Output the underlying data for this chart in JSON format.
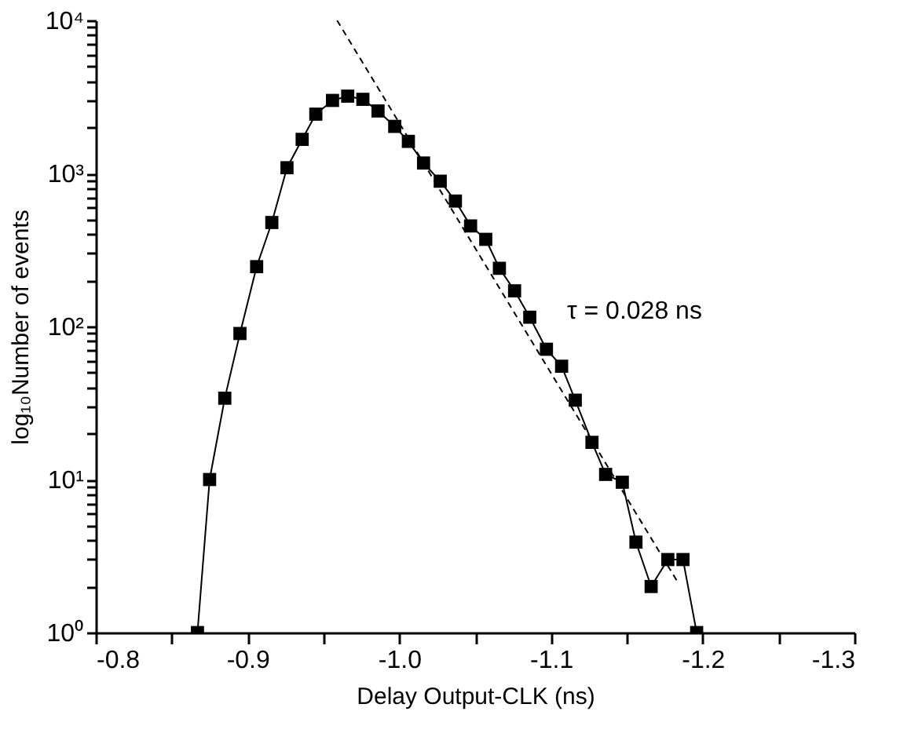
{
  "chart_data": {
    "type": "line",
    "xlabel": "Delay Output-CLK (ns)",
    "ylabel": "log₁₀Number of events",
    "log": "y",
    "grid": false,
    "xlim": [
      -0.8,
      -1.3
    ],
    "xticks": [
      {
        "value": -0.8,
        "label": "-0.8"
      },
      {
        "value": -0.85,
        "label": null
      },
      {
        "value": -0.9,
        "label": "-0.9"
      },
      {
        "value": -0.95,
        "label": null
      },
      {
        "value": -1.0,
        "label": "-1.0"
      },
      {
        "value": -1.05,
        "label": null
      },
      {
        "value": -1.1,
        "label": "-1.1"
      },
      {
        "value": -1.15,
        "label": null
      },
      {
        "value": -1.2,
        "label": "-1.2"
      },
      {
        "value": -1.25,
        "label": null
      },
      {
        "value": -1.3,
        "label": "-1.3"
      }
    ],
    "ylim": [
      1,
      10000
    ],
    "yticks": [
      {
        "value": 1,
        "label": "10⁰"
      },
      {
        "value": 2,
        "label": null
      },
      {
        "value": 3,
        "label": null
      },
      {
        "value": 4,
        "label": null
      },
      {
        "value": 5,
        "label": null
      },
      {
        "value": 6,
        "label": null
      },
      {
        "value": 7,
        "label": null
      },
      {
        "value": 8,
        "label": null
      },
      {
        "value": 9,
        "label": null
      },
      {
        "value": 10,
        "label": "10¹"
      },
      {
        "value": 20,
        "label": null
      },
      {
        "value": 30,
        "label": null
      },
      {
        "value": 40,
        "label": null
      },
      {
        "value": 50,
        "label": null
      },
      {
        "value": 60,
        "label": null
      },
      {
        "value": 70,
        "label": null
      },
      {
        "value": 80,
        "label": null
      },
      {
        "value": 90,
        "label": null
      },
      {
        "value": 100,
        "label": "10²"
      },
      {
        "value": 200,
        "label": null
      },
      {
        "value": 300,
        "label": null
      },
      {
        "value": 400,
        "label": null
      },
      {
        "value": 500,
        "label": null
      },
      {
        "value": 600,
        "label": null
      },
      {
        "value": 700,
        "label": null
      },
      {
        "value": 800,
        "label": null
      },
      {
        "value": 900,
        "label": null
      },
      {
        "value": 1000,
        "label": "10³"
      },
      {
        "value": 2000,
        "label": null
      },
      {
        "value": 3000,
        "label": null
      },
      {
        "value": 4000,
        "label": null
      },
      {
        "value": 5000,
        "label": null
      },
      {
        "value": 6000,
        "label": null
      },
      {
        "value": 7000,
        "label": null
      },
      {
        "value": 8000,
        "label": null
      },
      {
        "value": 9000,
        "label": null
      },
      {
        "value": 10000,
        "label": "10⁴"
      }
    ],
    "annotations": [
      "τ = 0.028 ns"
    ],
    "series": [
      {
        "marker": "square",
        "line_style": "solid",
        "color": "#000000",
        "x": [
          -0.867,
          -0.875,
          -0.885,
          -0.895,
          -0.906,
          -0.916,
          -0.926,
          -0.936,
          -0.945,
          -0.956,
          -0.966,
          -0.976,
          -0.986,
          -0.997,
          -1.006,
          -1.016,
          -1.027,
          -1.037,
          -1.047,
          -1.057,
          -1.066,
          -1.076,
          -1.086,
          -1.097,
          -1.107,
          -1.116,
          -1.127,
          -1.136,
          -1.147,
          -1.156,
          -1.166,
          -1.177,
          -1.187,
          -1.196
        ],
        "values": [
          1,
          10,
          34,
          90,
          246,
          478,
          1090,
          1670,
          2440,
          3000,
          3200,
          3050,
          2560,
          2030,
          1620,
          1170,
          890,
          660,
          454,
          371,
          240,
          171,
          115,
          71,
          55,
          33,
          17.5,
          10.8,
          9.6,
          3.9,
          2,
          3,
          3,
          1
        ]
      },
      {
        "marker": "none",
        "line_style": "dashed",
        "color": "#000000",
        "x": [
          -0.959,
          -1.184
        ],
        "values": [
          10000,
          2.1
        ]
      }
    ]
  }
}
